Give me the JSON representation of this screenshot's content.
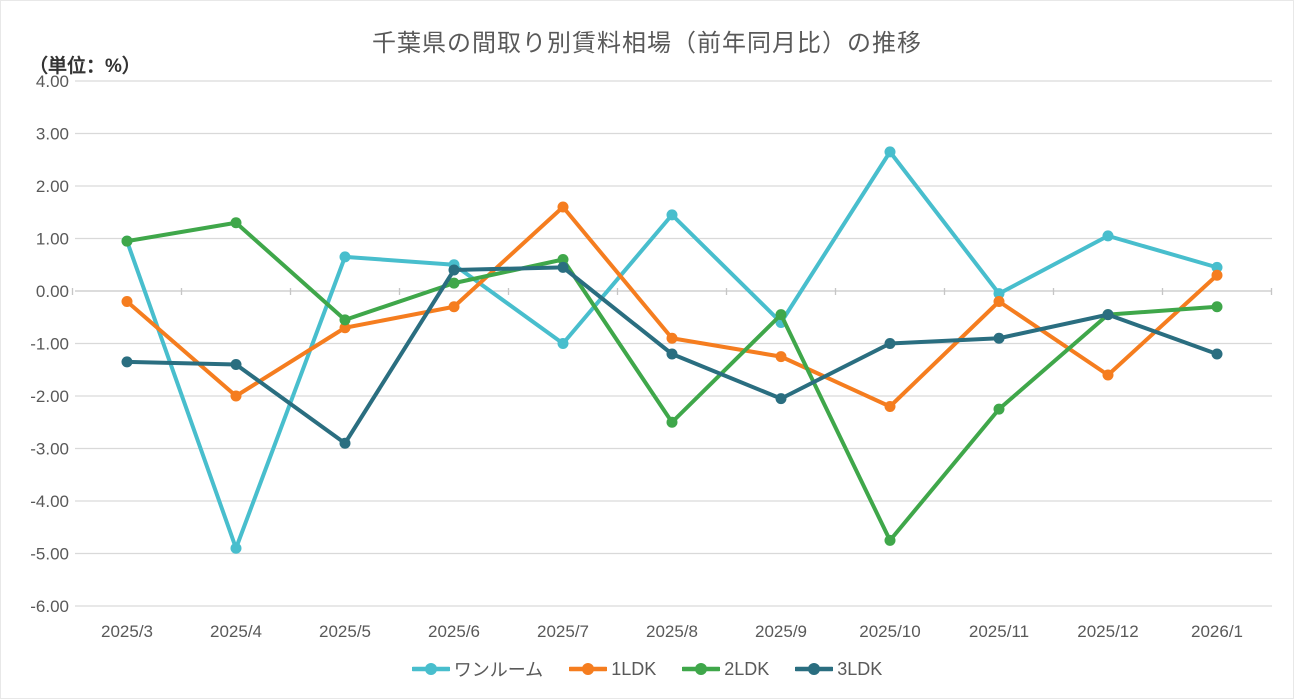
{
  "chart": {
    "title": "千葉県の間取り別賃料相場（前年同月比）の推移",
    "unit_label": "（単位：%）"
  },
  "chart_data": {
    "type": "line",
    "title": "千葉県の間取り別賃料相場（前年同月比）の推移",
    "unit_label": "（単位：%）",
    "categories": [
      "2025/3",
      "2025/4",
      "2025/5",
      "2025/6",
      "2025/7",
      "2025/8",
      "2025/9",
      "2025/10",
      "2025/11",
      "2025/12",
      "2026/1"
    ],
    "series": [
      {
        "name": "ワンルーム",
        "color": "#48BECD",
        "values": [
          0.95,
          -4.9,
          0.65,
          0.5,
          -1.0,
          1.45,
          -0.6,
          2.65,
          -0.05,
          1.05,
          0.45
        ]
      },
      {
        "name": "1LDK",
        "color": "#F57D1F",
        "values": [
          -0.2,
          -2.0,
          -0.7,
          -0.3,
          1.6,
          -0.9,
          -1.25,
          -2.2,
          -0.2,
          -1.6,
          0.3
        ]
      },
      {
        "name": "2LDK",
        "color": "#3FA74A",
        "values": [
          0.95,
          1.3,
          -0.55,
          0.15,
          0.6,
          -2.5,
          -0.45,
          -4.75,
          -2.25,
          -0.45,
          -0.3
        ]
      },
      {
        "name": "3LDK",
        "color": "#2A6E80",
        "values": [
          -1.35,
          -1.4,
          -2.9,
          0.4,
          0.45,
          -1.2,
          -2.05,
          -1.0,
          -0.9,
          -0.45,
          -1.2
        ]
      }
    ],
    "ylim": [
      -6,
      4
    ],
    "yticks": [
      4,
      3,
      2,
      1,
      0,
      -1,
      -2,
      -3,
      -4,
      -5,
      -6
    ],
    "ytick_format_decimals": 2,
    "grid": true,
    "legend_position": "bottom",
    "xlabel": "",
    "ylabel": "（単位：%）"
  },
  "colors": {
    "background": "#ffffff",
    "gridline": "#d9d9d9",
    "zero_axis": "#c6c6c6",
    "title_text": "#595959",
    "axis_text": "#595959",
    "unit_text": "#333333"
  }
}
